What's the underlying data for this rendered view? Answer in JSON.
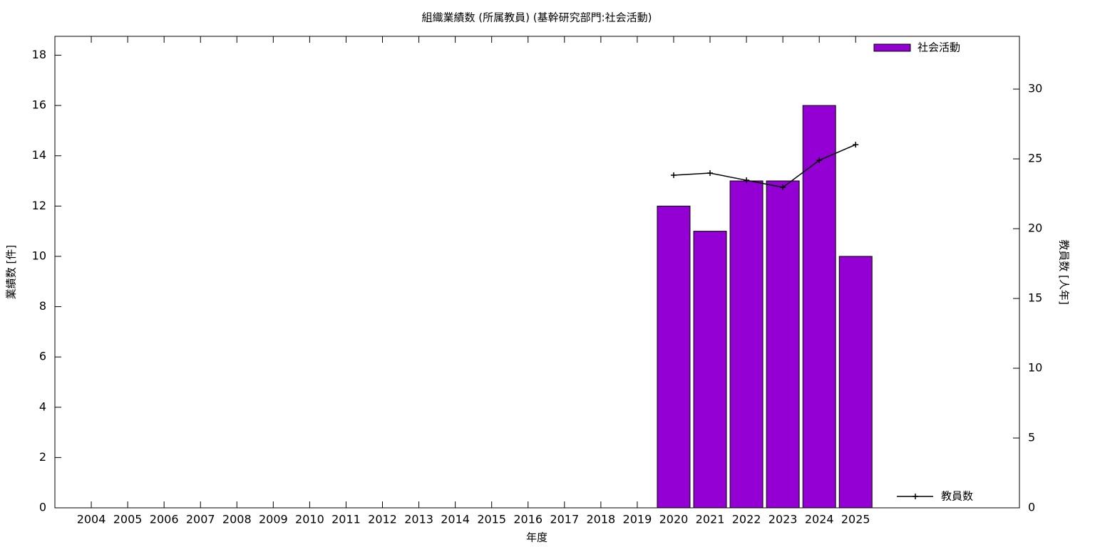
{
  "chart_data": {
    "type": "bar",
    "title": "組織業績数 (所属教員) (基幹研究部門:社会活動)",
    "x_label": "年度",
    "y_label": "業績数 [件]",
    "y2_label": "教員数 [人年]",
    "categories": [
      "2004",
      "2005",
      "2006",
      "2007",
      "2008",
      "2009",
      "2010",
      "2011",
      "2012",
      "2013",
      "2014",
      "2015",
      "2016",
      "2017",
      "2018",
      "2019",
      "2020",
      "2021",
      "2022",
      "2023",
      "2024",
      "2025"
    ],
    "series": [
      {
        "name": "社会活動",
        "type": "bar",
        "color": "#9400d3",
        "values": [
          null,
          null,
          null,
          null,
          null,
          null,
          null,
          null,
          null,
          null,
          null,
          null,
          null,
          null,
          null,
          null,
          12,
          11,
          13,
          13,
          16,
          10
        ]
      },
      {
        "name": "教員数",
        "type": "line",
        "color": "#000000",
        "axis": "y2",
        "values": [
          null,
          null,
          null,
          null,
          null,
          null,
          null,
          null,
          null,
          null,
          null,
          null,
          null,
          null,
          null,
          null,
          23.83,
          23.98,
          23.47,
          22.96,
          24.9,
          26.02
        ]
      }
    ],
    "ylim": [
      0,
      18.75
    ],
    "yticks": [
      0,
      2,
      4,
      6,
      8,
      10,
      12,
      14,
      16,
      18
    ],
    "y2lim": [
      0,
      33.78
    ],
    "y2ticks": [
      0,
      5,
      10,
      15,
      20,
      25,
      30
    ],
    "legend": "right",
    "grid": false
  }
}
